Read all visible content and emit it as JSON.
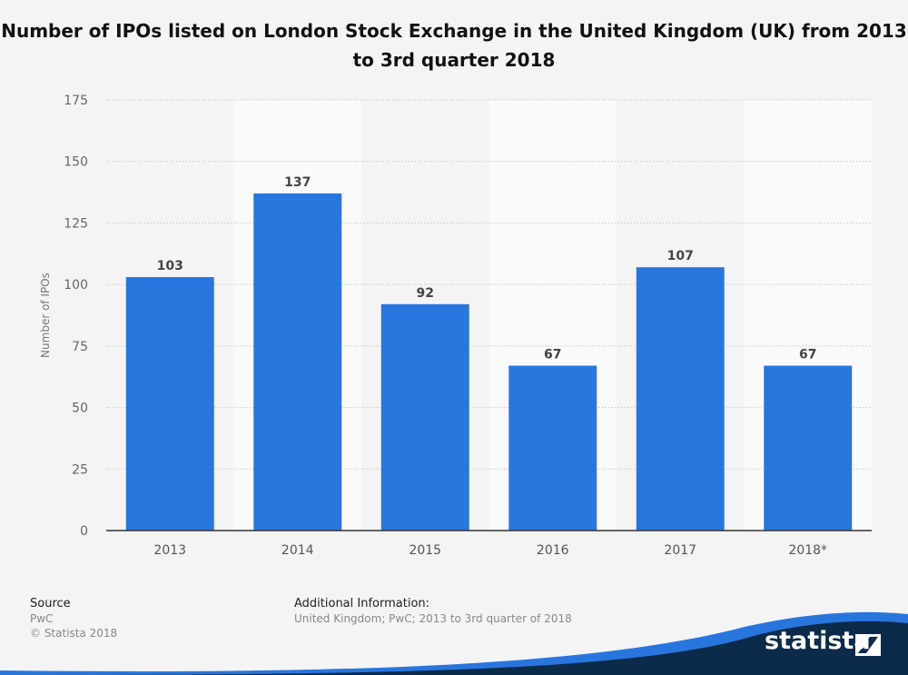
{
  "chart_data": {
    "type": "bar",
    "title": "Number of IPOs listed on London Stock Exchange in the United Kingdom (UK) from 2013 to 3rd quarter 2018",
    "categories": [
      "2013",
      "2014",
      "2015",
      "2016",
      "2017",
      "2018*"
    ],
    "values": [
      103,
      137,
      92,
      67,
      107,
      67
    ],
    "ylabel": "Number of IPOs",
    "xlabel": "",
    "ylim": [
      0,
      175
    ],
    "yticks": [
      0,
      25,
      50,
      75,
      100,
      125,
      150,
      175
    ],
    "grid": true,
    "bar_color": "#2876dd"
  },
  "footer": {
    "source_label": "Source",
    "source_value": "PwC",
    "copyright": "© Statista 2018",
    "additional_label": "Additional Information:",
    "additional_value": "United Kingdom; PwC; 2013 to 3rd quarter of 2018"
  },
  "brand": {
    "name": "statista",
    "icon": "statista-logo-icon"
  }
}
